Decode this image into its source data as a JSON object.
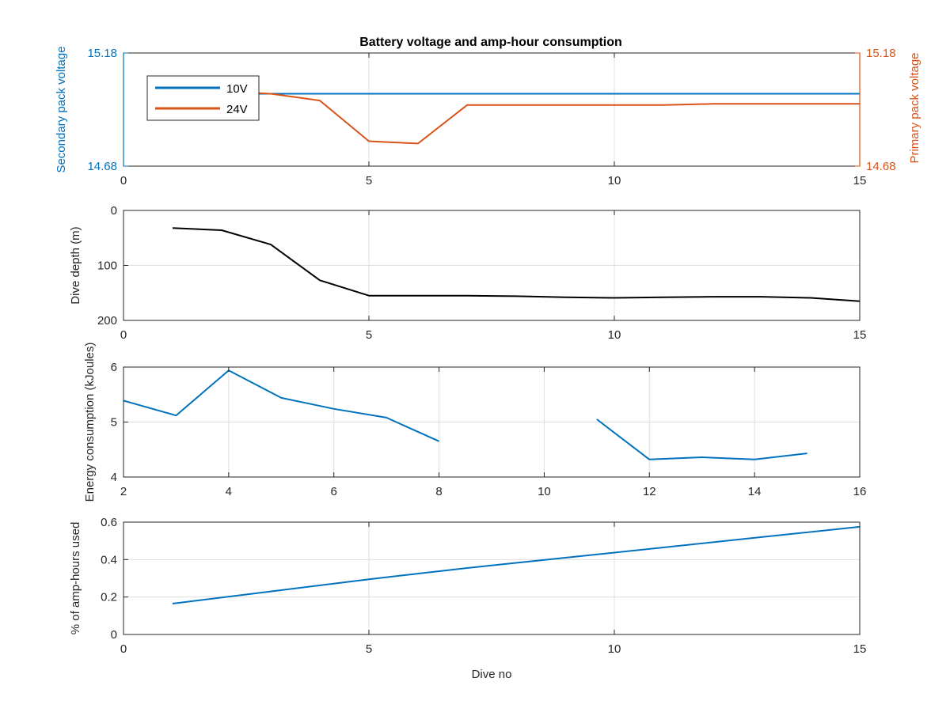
{
  "colors": {
    "blue": "#0072BD",
    "orange": "#D95319",
    "black": "#000000",
    "grid": "#dfdfdf",
    "axis": "#262626"
  },
  "chart_data": [
    {
      "id": "voltage",
      "type": "line",
      "title": "Battery voltage and amp-hour consumption",
      "xlabel": "",
      "xlim": [
        0,
        15
      ],
      "xticks": [
        "0",
        "5",
        "10",
        "15"
      ],
      "ylabel_left": "Secondary pack voltage",
      "ylabel_right": "Primary pack voltage",
      "ylim": [
        14.68,
        15.18
      ],
      "yticks_left": [
        "14.68",
        "15.18"
      ],
      "yticks_right": [
        "14.68",
        "15.18"
      ],
      "grid": true,
      "legend": {
        "placement": "top-left",
        "entries": [
          "10V",
          "24V"
        ]
      },
      "series": [
        {
          "name": "10V",
          "axis": "left",
          "color": "blue",
          "x": [
            1,
            2,
            3,
            4,
            5,
            6,
            7,
            8,
            9,
            10,
            11,
            12,
            13,
            14,
            15
          ],
          "y": [
            15.0,
            15.0,
            15.0,
            15.0,
            15.0,
            15.0,
            15.0,
            15.0,
            15.0,
            15.0,
            15.0,
            15.0,
            15.0,
            15.0,
            15.0
          ]
        },
        {
          "name": "24V",
          "axis": "right",
          "color": "orange",
          "x": [
            1,
            2,
            3,
            4,
            5,
            5.5,
            6,
            7,
            8,
            9,
            10,
            11,
            12,
            13,
            14,
            15
          ],
          "y": [
            15.0,
            15.01,
            15.0,
            14.97,
            14.79,
            14.785,
            14.78,
            14.95,
            14.95,
            14.95,
            14.95,
            14.95,
            14.955,
            14.955,
            14.955,
            14.955
          ]
        }
      ]
    },
    {
      "id": "depth",
      "type": "line",
      "xlim": [
        0,
        15
      ],
      "xticks": [
        "0",
        "5",
        "10",
        "15"
      ],
      "ylabel": "Dive depth (m)",
      "ylim": [
        0,
        200
      ],
      "yreverse": true,
      "yticks": [
        "0",
        "100",
        "200"
      ],
      "grid": true,
      "series": [
        {
          "color": "black",
          "x": [
            1,
            2,
            3,
            4,
            5,
            6,
            7,
            8,
            9,
            10,
            11,
            12,
            13,
            14,
            15
          ],
          "y": [
            32,
            36,
            62,
            127,
            155,
            155,
            155,
            156,
            158,
            159,
            158,
            157,
            157,
            159,
            165
          ]
        }
      ]
    },
    {
      "id": "energy",
      "type": "line",
      "xlim": [
        2,
        16
      ],
      "xticks": [
        "2",
        "4",
        "6",
        "8",
        "10",
        "12",
        "14",
        "16"
      ],
      "ylabel": "Energy consumption (kJoules)",
      "ylim": [
        4,
        6
      ],
      "yticks": [
        "4",
        "5",
        "6"
      ],
      "grid": true,
      "series": [
        {
          "color": "blue",
          "x": [
            2,
            3,
            4,
            5,
            6,
            7,
            8,
            null,
            11,
            12,
            13,
            14,
            15
          ],
          "y": [
            5.39,
            5.12,
            5.94,
            5.44,
            5.24,
            5.08,
            4.65,
            null,
            5.05,
            4.32,
            4.36,
            4.32,
            4.43
          ]
        }
      ]
    },
    {
      "id": "amphours",
      "type": "line",
      "xlabel": "Dive no",
      "xlim": [
        0,
        15
      ],
      "xticks": [
        "0",
        "5",
        "10",
        "15"
      ],
      "ylabel": "% of amp-hours used",
      "ylim": [
        0,
        0.6
      ],
      "yticks": [
        "0",
        "0.2",
        "0.4",
        "0.6"
      ],
      "grid": true,
      "series": [
        {
          "color": "blue",
          "x": [
            1,
            3,
            5,
            7,
            9,
            11,
            13,
            15
          ],
          "y": [
            0.165,
            0.23,
            0.295,
            0.355,
            0.41,
            0.465,
            0.52,
            0.575
          ]
        }
      ]
    }
  ]
}
